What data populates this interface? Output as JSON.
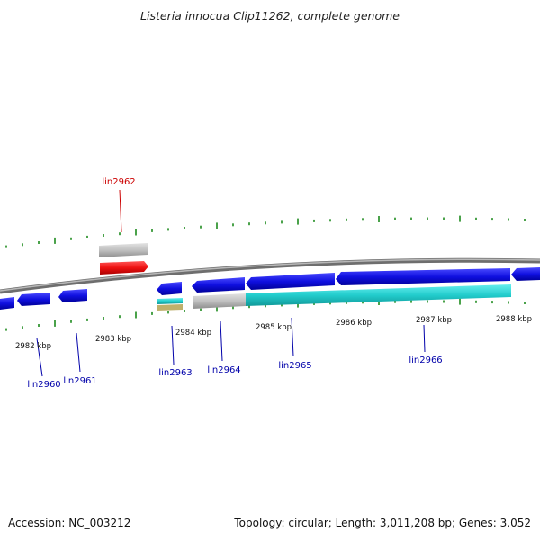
{
  "title": "Listeria innocua Clip11262, complete genome",
  "footer": {
    "accession": "Accession: NC_003212",
    "topology": "Topology: circular; Length: 3,011,208 bp; Genes: 3,052"
  },
  "colors": {
    "backbone": "#8c8c8c",
    "tick": "#1d8a1d",
    "forward_label": "#cc0000",
    "reverse_label": "#0000aa",
    "gene_blue": "#1010e0",
    "gene_red": "#ee1111",
    "gene_grey": "#bbbbbb",
    "feature_cyan": "#22cccc"
  },
  "scale_labels": [
    "2982 kbp",
    "2983 kbp",
    "2984 kbp",
    "2985 kbp",
    "2986 kbp",
    "2987 kbp",
    "2988 kbp"
  ],
  "genes": [
    {
      "name": "lin2960",
      "strand": "reverse"
    },
    {
      "name": "lin2961",
      "strand": "reverse"
    },
    {
      "name": "lin2962",
      "strand": "forward"
    },
    {
      "name": "lin2963",
      "strand": "reverse"
    },
    {
      "name": "lin2964",
      "strand": "reverse"
    },
    {
      "name": "lin2965",
      "strand": "reverse"
    },
    {
      "name": "lin2966",
      "strand": "reverse"
    }
  ]
}
